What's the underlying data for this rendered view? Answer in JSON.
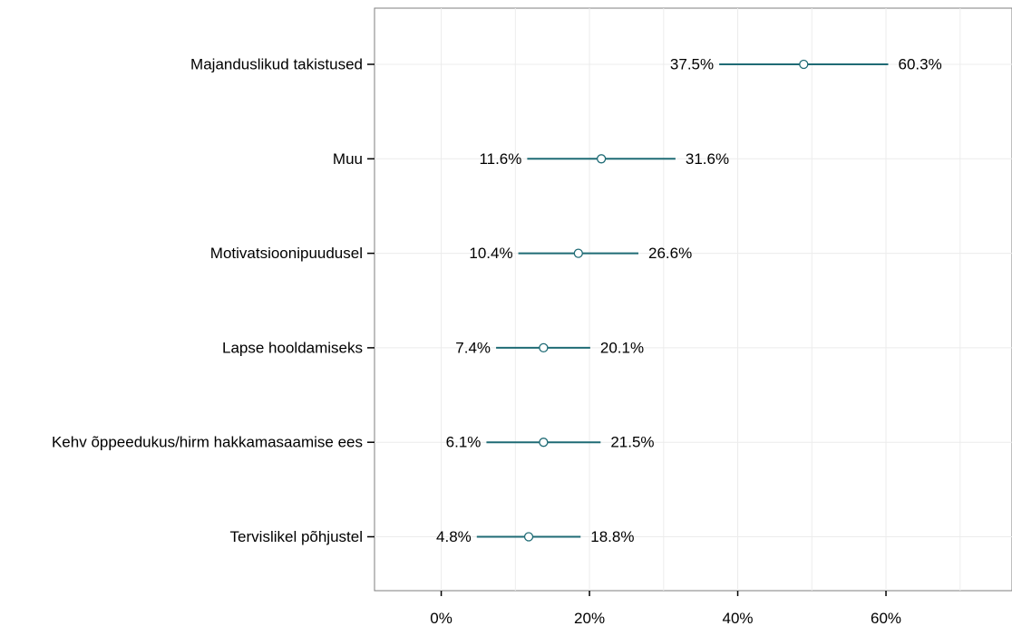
{
  "chart_data": {
    "type": "interval",
    "categories": [
      "Majanduslikud takistused",
      "Muu",
      "Motivatsioonipuudusel",
      "Lapse hooldamiseks",
      "Kehv õppeedukus/hirm hakkamasaamise ees",
      "Tervislikel põhjustel"
    ],
    "lower": [
      37.5,
      11.6,
      10.4,
      7.4,
      6.1,
      4.8
    ],
    "estimate": [
      48.9,
      21.6,
      18.5,
      13.8,
      13.8,
      11.8
    ],
    "upper": [
      60.3,
      31.6,
      26.6,
      20.1,
      21.5,
      18.8
    ],
    "lower_labels": [
      "37.5%",
      "11.6%",
      "10.4%",
      "7.4%",
      "6.1%",
      "4.8%"
    ],
    "upper_labels": [
      "60.3%",
      "31.6%",
      "26.6%",
      "20.1%",
      "21.5%",
      "18.8%"
    ],
    "x_ticks": [
      0,
      20,
      40,
      60
    ],
    "x_tick_labels": [
      "0%",
      "20%",
      "40%",
      "60%"
    ],
    "xlim": [
      -9,
      77
    ],
    "title": "",
    "xlabel": "",
    "ylabel": "",
    "grid": true,
    "colors": {
      "interval": "#1f6b75",
      "point_fill": "#ffffff",
      "frame": "#7f7f7f",
      "grid": "#ececec"
    }
  }
}
